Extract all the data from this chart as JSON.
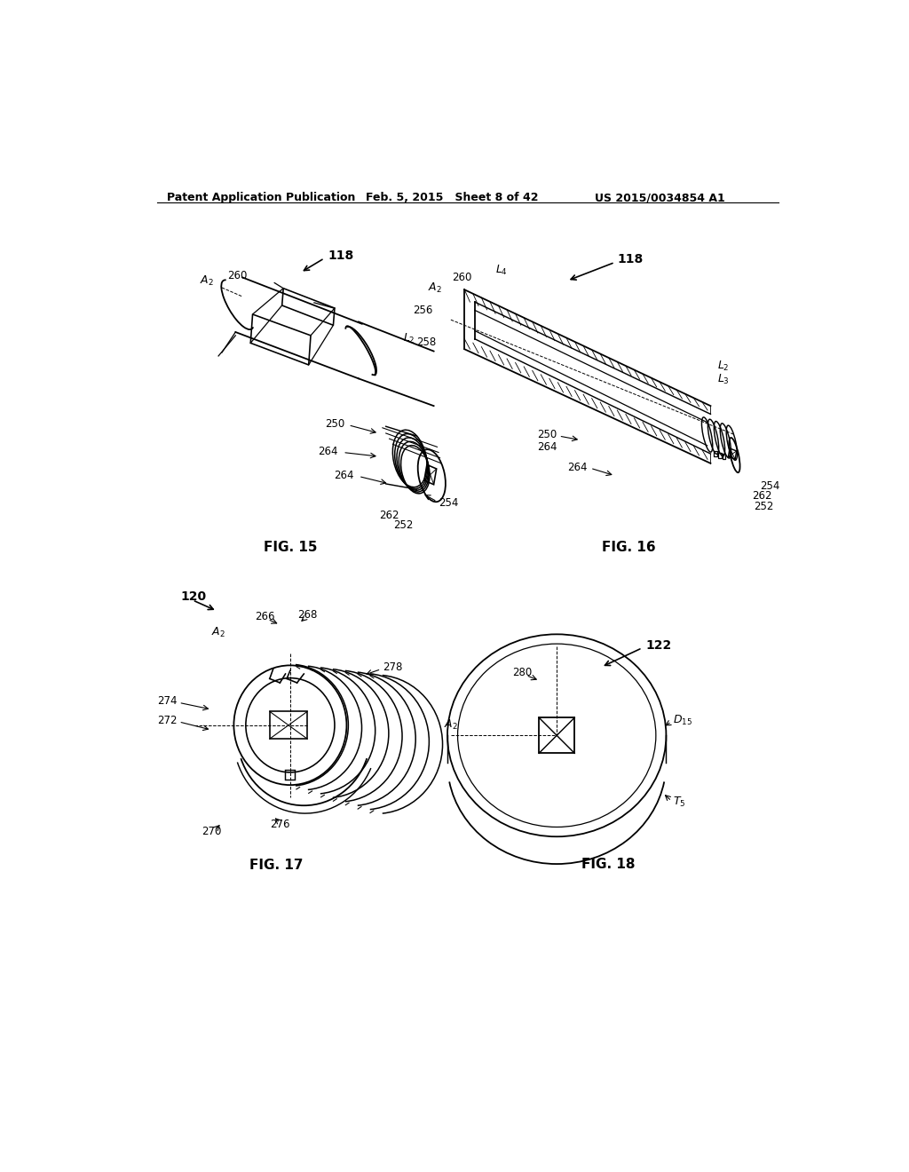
{
  "background_color": "#ffffff",
  "header_left": "Patent Application Publication",
  "header_mid": "Feb. 5, 2015   Sheet 8 of 42",
  "header_right": "US 2015/0034854 A1",
  "fig15_label": "FIG. 15",
  "fig16_label": "FIG. 16",
  "fig17_label": "FIG. 17",
  "fig18_label": "FIG. 18",
  "line_color": "#000000",
  "line_width": 1.3,
  "hatch_color": "#444444",
  "gray_fill": "#e8e8e8"
}
